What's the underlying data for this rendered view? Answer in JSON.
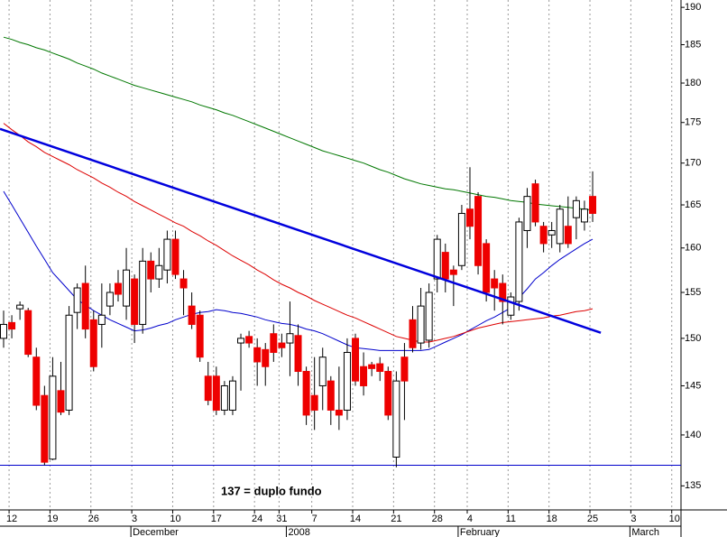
{
  "chart_data": {
    "type": "candlestick",
    "categories": [
      null,
      "12",
      null,
      null,
      null,
      null,
      "19",
      null,
      null,
      null,
      null,
      "26",
      null,
      null,
      null,
      null,
      "3",
      null,
      null,
      null,
      null,
      "10",
      null,
      null,
      null,
      null,
      "17",
      null,
      null,
      null,
      null,
      "24",
      null,
      null,
      "31",
      null,
      null,
      null,
      "7",
      null,
      null,
      null,
      null,
      "14",
      null,
      null,
      null,
      null,
      "21",
      null,
      null,
      null,
      null,
      "28",
      null,
      null,
      null,
      "4",
      null,
      null,
      null,
      null,
      "11",
      null,
      null,
      null,
      null,
      "18",
      null,
      null,
      null,
      null,
      "25",
      null,
      null,
      null,
      null,
      "3",
      null,
      null,
      null,
      null,
      "10"
    ],
    "months": [
      null,
      null,
      null,
      null,
      null,
      null,
      null,
      null,
      null,
      null,
      null,
      null,
      null,
      null,
      null,
      null,
      "December",
      null,
      null,
      null,
      null,
      null,
      null,
      null,
      null,
      null,
      null,
      null,
      null,
      null,
      null,
      null,
      null,
      null,
      null,
      "2008",
      null,
      null,
      null,
      null,
      null,
      null,
      null,
      null,
      null,
      null,
      null,
      null,
      null,
      null,
      null,
      null,
      null,
      null,
      null,
      null,
      "February",
      null,
      null,
      null,
      null,
      null,
      null,
      null,
      null,
      null,
      null,
      null,
      null,
      null,
      null,
      null,
      null,
      null,
      null,
      null,
      null,
      "March",
      null,
      null,
      null,
      null,
      null
    ],
    "open": [
      150,
      151.7,
      153.2,
      153,
      148,
      144,
      137.6,
      144.5,
      142.5,
      152.8,
      156,
      152,
      151.5,
      153.5,
      156,
      153.5,
      156.5,
      151.5,
      158.5,
      156.5,
      157.5,
      161,
      156.5,
      153.5,
      152.5,
      146,
      146,
      142.5,
      142.5,
      149.5,
      150.2,
      149,
      148.8,
      150.5,
      149.5,
      149.5,
      150.3,
      146.5,
      144,
      145,
      145.5,
      142.5,
      142.5,
      150,
      147,
      147.2,
      147.3,
      146.5,
      137.8,
      148,
      152,
      149.5,
      149.8,
      156.5,
      159.5,
      157.5,
      158,
      164.5,
      166,
      160.5,
      156.5,
      156,
      152.5,
      154,
      162,
      167.5,
      162.5,
      161.5,
      160.5,
      162.5,
      163.5,
      163,
      166,
      null,
      null,
      null,
      null,
      null,
      null,
      null,
      null,
      null,
      null
    ],
    "high": [
      153,
      152.5,
      154,
      153.3,
      149,
      145,
      148,
      147.5,
      153.5,
      156,
      158,
      153,
      156,
      156,
      157.5,
      160,
      157,
      160,
      159.5,
      160,
      162,
      162,
      157.5,
      155,
      153,
      147.5,
      147,
      145.5,
      146,
      150.5,
      150.8,
      150,
      149.5,
      151.5,
      150.5,
      154,
      151.5,
      147,
      148,
      149,
      146,
      147,
      150,
      150.5,
      148.5,
      147.5,
      148,
      147,
      146.5,
      149.5,
      153.5,
      155.5,
      156,
      161.5,
      160.5,
      158,
      165,
      169.5,
      166.5,
      161,
      157.5,
      157,
      155,
      163.5,
      167,
      168,
      163,
      163,
      165,
      166,
      166,
      165.5,
      169,
      null,
      null,
      null,
      null,
      null,
      null,
      null,
      null,
      null,
      null
    ],
    "low": [
      149,
      150,
      152,
      148,
      142.5,
      137,
      137.5,
      142,
      142,
      151,
      150,
      146.5,
      149,
      152.5,
      154,
      152,
      149.5,
      150.5,
      155,
      155.5,
      156,
      156.5,
      152.5,
      151,
      147.5,
      143,
      142,
      142,
      142,
      144.5,
      149,
      145,
      145,
      147.5,
      148,
      146,
      145,
      141,
      140.5,
      142.5,
      141,
      140.5,
      141.5,
      145,
      144,
      146,
      145.5,
      141.5,
      136.8,
      141.5,
      148.5,
      148.8,
      149,
      155,
      155,
      153.5,
      157.5,
      161,
      157,
      154,
      153,
      151.5,
      152,
      153,
      160,
      162.5,
      159.5,
      160,
      159.5,
      160,
      161,
      162,
      163,
      null,
      null,
      null,
      null,
      null,
      null,
      null,
      null,
      null,
      null
    ],
    "close": [
      151.5,
      151,
      153.6,
      148.3,
      143,
      137.3,
      146,
      142.3,
      152.5,
      155.5,
      151,
      147,
      152.5,
      155,
      154.8,
      157.5,
      151.5,
      158.5,
      156.5,
      158,
      161,
      157,
      155.5,
      151.5,
      148,
      143.5,
      142.5,
      145,
      145.5,
      150,
      149.5,
      147.5,
      147,
      148.5,
      149,
      150.5,
      146.5,
      142,
      142.5,
      148,
      142.5,
      142,
      148.5,
      145.5,
      145,
      146.8,
      146.5,
      142,
      145.5,
      145.5,
      149,
      153.5,
      155,
      161,
      156.5,
      157,
      164,
      162.5,
      158,
      155,
      155.5,
      154,
      154.5,
      163,
      166,
      163,
      160.5,
      162,
      164.5,
      160.5,
      165.5,
      164.5,
      164,
      null,
      null,
      null,
      null,
      null,
      null,
      null,
      null,
      null,
      null
    ],
    "up_color": "#ffffff",
    "down_color": "#ee0000",
    "moving_averages": [
      {
        "color": "#0000cc",
        "values": [
          166.6,
          165.0,
          163.4,
          161.8,
          160.2,
          158.7,
          157.2,
          156.2,
          155.2,
          154.2,
          153.6,
          153.0,
          152.5,
          152.0,
          151.6,
          151.2,
          150.8,
          150.9,
          151.1,
          151.4,
          151.6,
          152.0,
          152.3,
          152.6,
          152.8,
          152.9,
          153.1,
          153.0,
          152.8,
          152.7,
          152.5,
          152.3,
          152.0,
          151.8,
          151.6,
          151.5,
          151.3,
          151.0,
          150.8,
          150.5,
          150.1,
          149.7,
          149.3,
          149.0,
          148.9,
          148.8,
          148.7,
          148.7,
          148.7,
          148.7,
          148.7,
          148.7,
          148.8,
          149.2,
          149.6,
          150.0,
          150.4,
          150.9,
          151.4,
          151.9,
          152.3,
          152.8,
          153.3,
          154.4,
          155.4,
          156.5,
          157.2,
          158.0,
          158.7,
          159.3,
          159.9,
          160.5,
          161.0,
          null,
          null,
          null,
          null,
          null,
          null,
          null,
          null,
          null,
          null
        ]
      },
      {
        "color": "#dd0000",
        "values": [
          174.9,
          174.1,
          173.4,
          172.6,
          172.0,
          171.3,
          170.8,
          170.3,
          169.8,
          169.2,
          168.7,
          168.2,
          167.6,
          167.1,
          166.5,
          166.0,
          165.4,
          164.9,
          164.4,
          163.9,
          163.4,
          162.9,
          162.5,
          161.9,
          161.4,
          160.8,
          160.3,
          159.7,
          159.1,
          158.6,
          158.1,
          157.5,
          157.0,
          156.4,
          155.9,
          155.5,
          155.0,
          154.6,
          154.1,
          153.7,
          153.3,
          152.9,
          152.5,
          152.2,
          151.8,
          151.4,
          151.0,
          150.6,
          150.2,
          150.0,
          149.8,
          149.6,
          149.6,
          149.8,
          150.0,
          150.2,
          150.5,
          150.8,
          151.1,
          151.3,
          151.5,
          151.7,
          151.8,
          151.9,
          152.0,
          152.1,
          152.2,
          152.4,
          152.5,
          152.7,
          152.9,
          153.0,
          153.2,
          null,
          null,
          null,
          null,
          null,
          null,
          null,
          null,
          null,
          null
        ]
      },
      {
        "color": "#007700",
        "values": [
          186.0,
          185.7,
          185.3,
          185.0,
          184.6,
          184.3,
          183.9,
          183.5,
          183.1,
          182.6,
          182.2,
          181.8,
          181.3,
          180.9,
          180.5,
          180.1,
          179.7,
          179.4,
          179.1,
          178.8,
          178.5,
          178.2,
          177.9,
          177.6,
          177.2,
          176.9,
          176.6,
          176.2,
          175.9,
          175.5,
          175.1,
          174.7,
          174.3,
          173.9,
          173.5,
          173.1,
          172.7,
          172.3,
          171.9,
          171.5,
          171.2,
          170.9,
          170.6,
          170.3,
          170.0,
          169.6,
          169.2,
          168.9,
          168.5,
          168.1,
          167.8,
          167.5,
          167.3,
          167.1,
          166.9,
          166.8,
          166.6,
          166.4,
          166.2,
          166.0,
          165.9,
          165.7,
          165.5,
          165.4,
          165.3,
          165.1,
          165.0,
          164.9,
          164.8,
          164.7,
          164.6,
          164.5,
          164.4,
          null,
          null,
          null,
          null,
          null,
          null,
          null,
          null,
          null,
          null
        ]
      }
    ],
    "trendline": {
      "start_index": 0,
      "start": 174.2,
      "end_index": 73,
      "end": 150.6,
      "color": "#0000dd"
    },
    "hline": {
      "value": 137,
      "color": "#0000cc"
    },
    "annotation": "137 = duplo fundo",
    "ylim": [
      132.7,
      191
    ],
    "yticks": [
      135,
      140,
      145,
      150,
      155,
      160,
      165,
      170,
      175,
      180,
      185,
      190
    ],
    "log_y": true,
    "grid_x": true
  }
}
